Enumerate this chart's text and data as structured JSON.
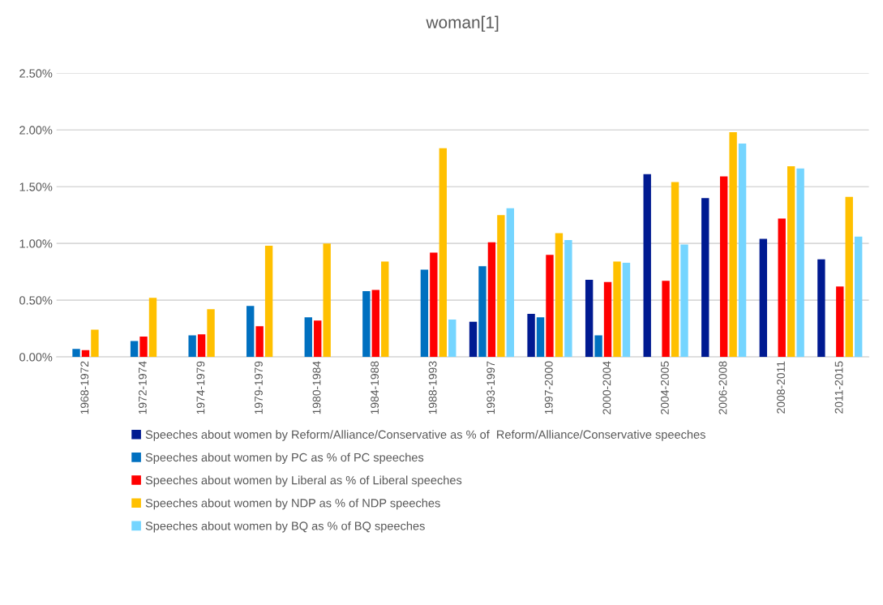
{
  "chart_data": {
    "type": "bar",
    "title": "woman[1]",
    "categories": [
      "1968-1972",
      "1972-1974",
      "1974-1979",
      "1979-1979",
      "1980-1984",
      "1984-1988",
      "1988-1993",
      "1993-1997",
      "1997-2000",
      "2000-2004",
      "2004-2005",
      "2006-2008",
      "2008-2011",
      "2011-2015"
    ],
    "series": [
      {
        "name": "Speeches about women by Reform/Alliance/Conservative as % of  Reform/Alliance/Conservative speeches",
        "color": "#001a91",
        "values": [
          null,
          null,
          null,
          null,
          null,
          null,
          null,
          0.31,
          0.38,
          0.68,
          1.61,
          1.4,
          1.04,
          0.86
        ]
      },
      {
        "name": "Speeches about women by PC as % of PC speeches",
        "color": "#0070c0",
        "values": [
          0.07,
          0.14,
          0.19,
          0.45,
          0.35,
          0.58,
          0.77,
          0.8,
          0.35,
          0.19,
          null,
          null,
          null,
          null
        ]
      },
      {
        "name": "Speeches about women by Liberal as % of Liberal speeches",
        "color": "#ff0000",
        "values": [
          0.06,
          0.18,
          0.2,
          0.27,
          0.32,
          0.59,
          0.92,
          1.01,
          0.9,
          0.66,
          0.67,
          1.59,
          1.22,
          0.62
        ]
      },
      {
        "name": "Speeches about women by NDP as % of NDP speeches",
        "color": "#ffc000",
        "values": [
          0.24,
          0.52,
          0.42,
          0.98,
          1.0,
          0.84,
          1.84,
          1.25,
          1.09,
          0.84,
          1.54,
          1.98,
          1.68,
          1.41
        ]
      },
      {
        "name": "Speeches about women by BQ as % of BQ speeches",
        "color": "#75d5ff",
        "values": [
          null,
          null,
          null,
          null,
          null,
          null,
          0.33,
          1.31,
          1.03,
          0.83,
          0.99,
          1.88,
          1.66,
          1.06
        ]
      }
    ],
    "ylim": [
      0,
      2.5
    ],
    "yticks": [
      {
        "value": 0,
        "label": "0.00%"
      },
      {
        "value": 0.5,
        "label": "0.50%"
      },
      {
        "value": 1.0,
        "label": "1.00%"
      },
      {
        "value": 1.5,
        "label": "1.50%"
      },
      {
        "value": 2.0,
        "label": "2.00%"
      },
      {
        "value": 2.5,
        "label": "2.50%"
      }
    ],
    "grid": "y",
    "legend": "bottom"
  }
}
